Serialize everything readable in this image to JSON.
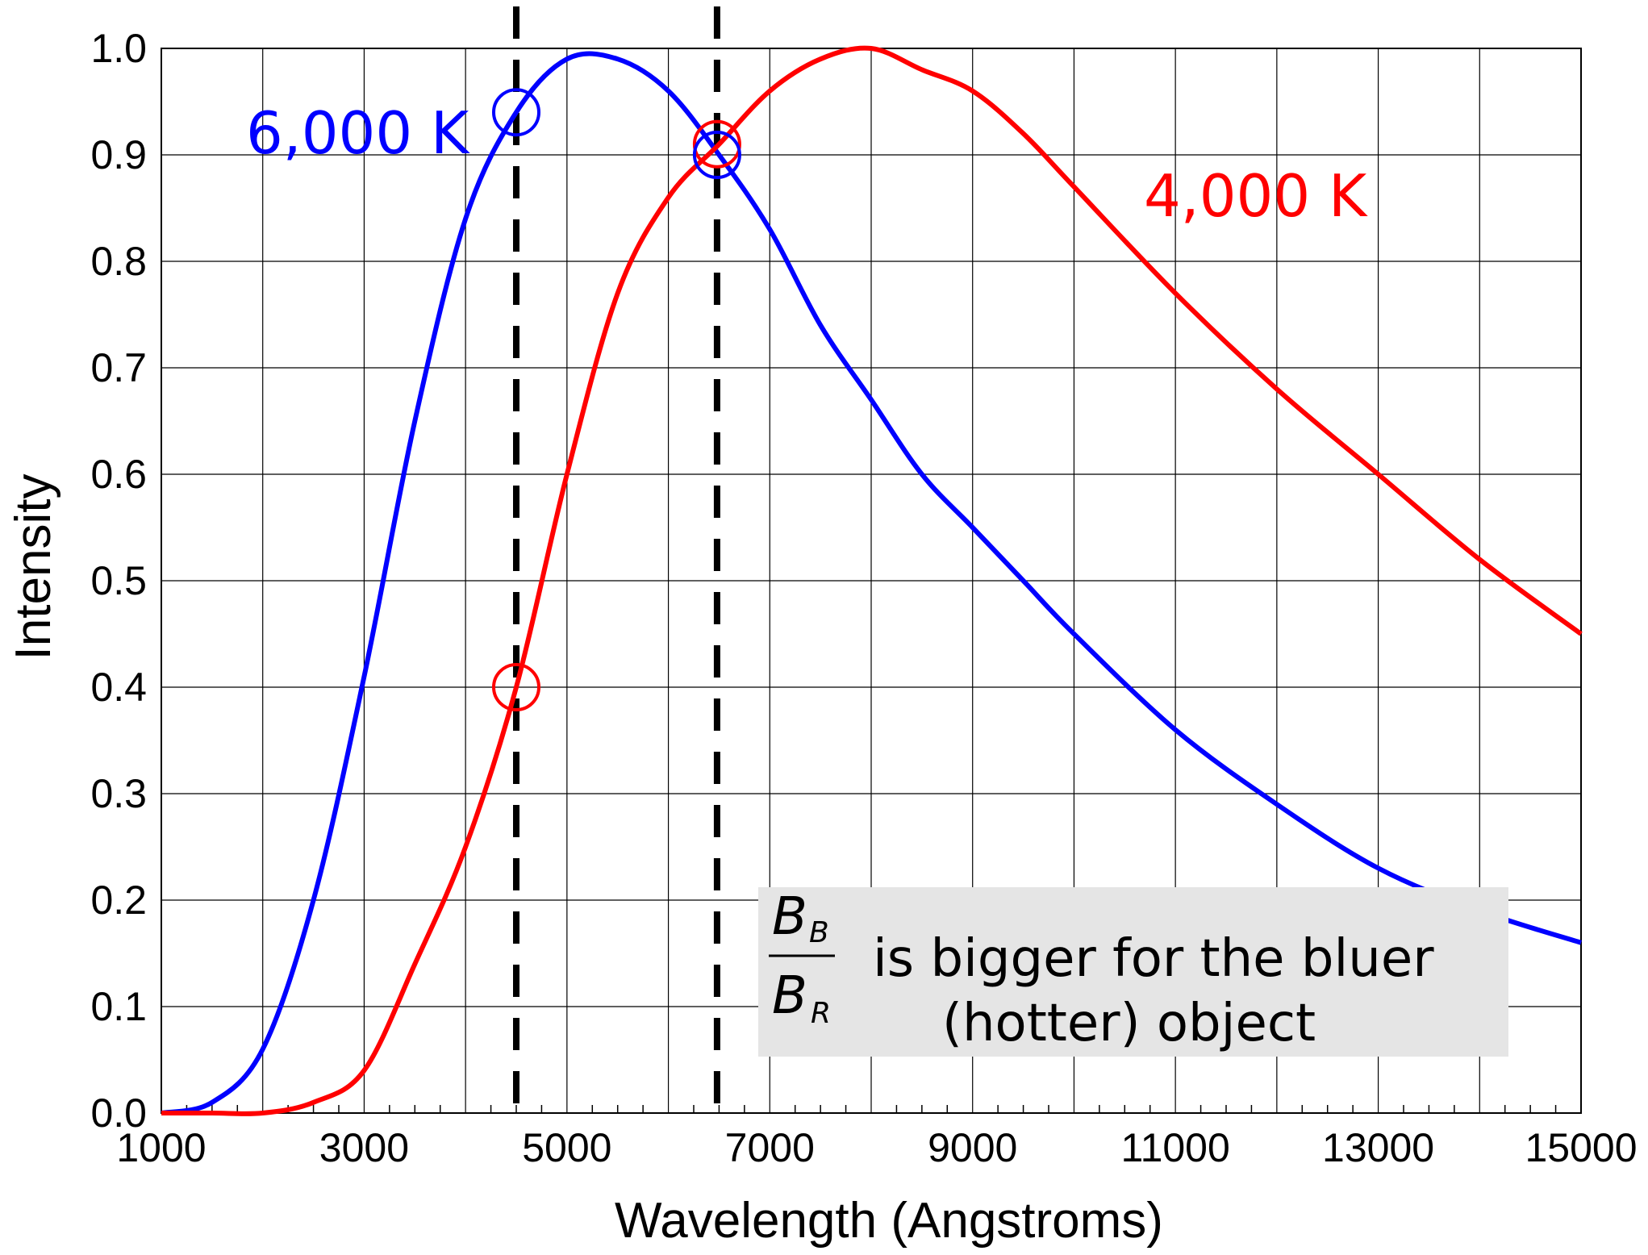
{
  "chart_data": {
    "type": "line",
    "xlabel": "Wavelength (Angstroms)",
    "ylabel": "Intensity",
    "xlim": [
      1000,
      15000
    ],
    "ylim": [
      0.0,
      1.0
    ],
    "x_ticks": [
      "1000",
      "3000",
      "5000",
      "7000",
      "9000",
      "11000",
      "13000",
      "15000"
    ],
    "y_ticks": [
      "0.0",
      "0.1",
      "0.2",
      "0.3",
      "0.4",
      "0.5",
      "0.6",
      "0.7",
      "0.8",
      "0.9",
      "1.0"
    ],
    "grid": true,
    "series": [
      {
        "name": "6,000 K",
        "color": "#0000ff",
        "x": [
          1000,
          1500,
          2000,
          2500,
          3000,
          3500,
          4000,
          4500,
          5000,
          5500,
          6000,
          6500,
          7000,
          7500,
          8000,
          8500,
          9000,
          9500,
          10000,
          11000,
          12000,
          13000,
          14000,
          15000
        ],
        "y": [
          0.0,
          0.01,
          0.06,
          0.2,
          0.41,
          0.65,
          0.84,
          0.94,
          0.99,
          0.99,
          0.96,
          0.9,
          0.83,
          0.74,
          0.67,
          0.6,
          0.55,
          0.5,
          0.45,
          0.36,
          0.29,
          0.23,
          0.19,
          0.16
        ]
      },
      {
        "name": "4,000 K",
        "color": "#ff0000",
        "x": [
          1000,
          1500,
          2000,
          2500,
          3000,
          3500,
          4000,
          4500,
          5000,
          5500,
          6000,
          6500,
          7000,
          7500,
          8000,
          8500,
          9000,
          9500,
          10000,
          11000,
          12000,
          13000,
          14000,
          15000
        ],
        "y": [
          0.0,
          0.0,
          0.0,
          0.01,
          0.04,
          0.14,
          0.25,
          0.4,
          0.6,
          0.77,
          0.86,
          0.91,
          0.96,
          0.99,
          1.0,
          0.98,
          0.96,
          0.92,
          0.87,
          0.77,
          0.68,
          0.6,
          0.52,
          0.45
        ]
      }
    ],
    "markers": [
      {
        "x": 4500,
        "y": 0.94,
        "color": "#0000ff"
      },
      {
        "x": 4500,
        "y": 0.4,
        "color": "#ff0000"
      },
      {
        "x": 6480,
        "y": 0.91,
        "color": "#ff0000"
      },
      {
        "x": 6480,
        "y": 0.9,
        "color": "#0000ff"
      }
    ],
    "vlines": [
      4500,
      6480
    ],
    "annotation": {
      "fraction_num": "B",
      "fraction_num_sub": "B",
      "fraction_den": "B",
      "fraction_den_sub": "R",
      "line1": "is bigger for the bluer",
      "line2": "(hotter) object"
    }
  }
}
